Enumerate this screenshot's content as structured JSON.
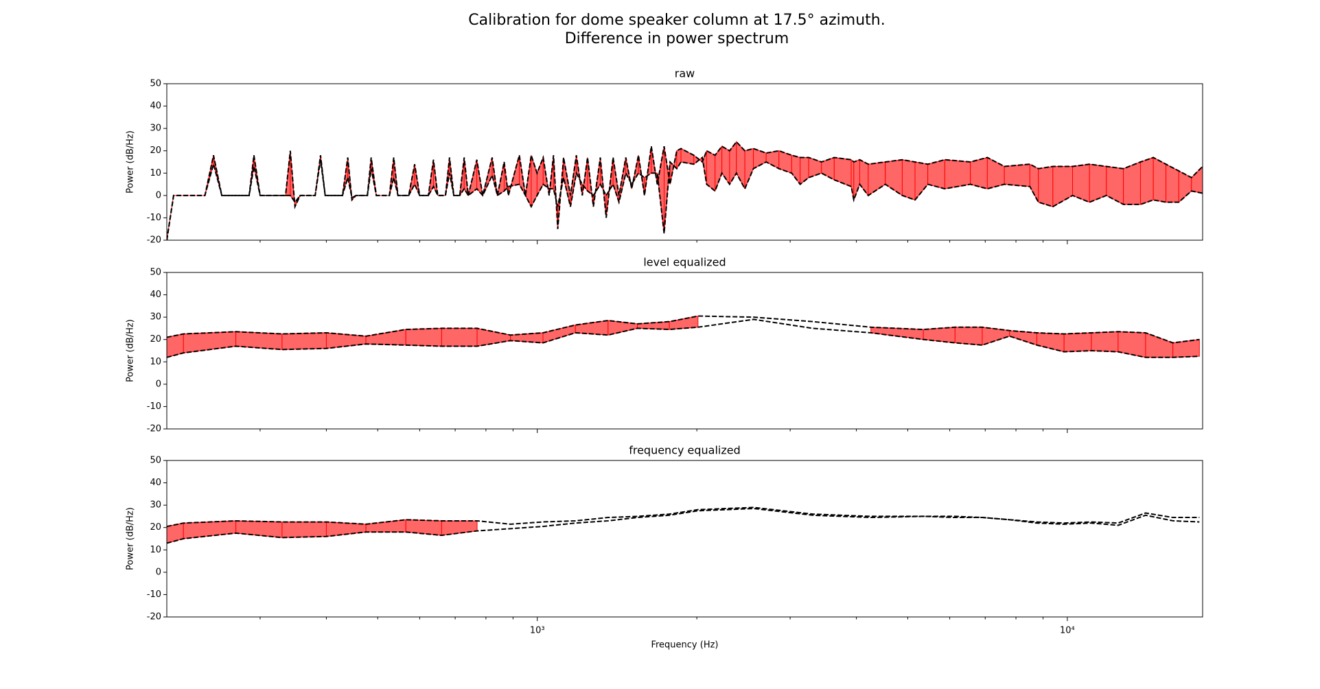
{
  "title": "Calibration for dome speaker column at 17.5° azimuth.",
  "subtitle": "Difference in power spectrum",
  "chart_data": [
    {
      "type": "line",
      "title": "raw",
      "ylabel": "Power (dB/Hz)",
      "xscale": "log",
      "xlim": [
        200,
        18000
      ],
      "ylim": [
        -20,
        50
      ],
      "yticks": [
        -20,
        -10,
        0,
        10,
        20,
        30,
        40,
        50
      ],
      "x": [
        200,
        206,
        236,
        245,
        254,
        286,
        292,
        300,
        335,
        342,
        349,
        357,
        381,
        390,
        398,
        429,
        439,
        447,
        455,
        478,
        486,
        497,
        526,
        536,
        546,
        572,
        587,
        600,
        623,
        637,
        649,
        671,
        683,
        696,
        714,
        728,
        741,
        769,
        789,
        822,
        841,
        866,
        882,
        925,
        950,
        974,
        999,
        1026,
        1053,
        1073,
        1093,
        1121,
        1155,
        1185,
        1216,
        1244,
        1276,
        1315,
        1349,
        1390,
        1426,
        1469,
        1507,
        1552,
        1593,
        1641,
        1684,
        1735,
        1780,
        1833,
        1867,
        1974,
        2048,
        2087,
        2165,
        2230,
        2306,
        2375,
        2464,
        2557,
        2703,
        2857,
        3020,
        3133,
        3251,
        3437,
        3633,
        3911,
        3955,
        4058,
        4211,
        4535,
        4882,
        5160,
        5455,
        5873,
        6562,
        7065,
        7607,
        8499,
        8820,
        9392,
        10230,
        11010,
        11850,
        12760,
        13740,
        14530,
        15350,
        16230,
        17150,
        18000
      ],
      "series": [
        {
          "color": "#000000",
          "linestyle": "dashed",
          "values": [
            -20,
            0,
            0,
            18,
            0,
            0,
            18,
            0,
            0,
            20,
            -5,
            0,
            0,
            18,
            0,
            0,
            17,
            -2,
            0,
            0,
            17,
            0,
            0,
            17,
            0,
            0,
            14,
            0,
            0,
            16,
            0,
            0,
            17,
            0,
            0,
            17,
            0,
            16,
            0,
            17,
            0,
            15,
            0,
            18,
            0,
            18,
            10,
            17,
            0,
            18,
            -15,
            17,
            0,
            18,
            0,
            17,
            -5,
            17,
            -10,
            17,
            0,
            17,
            3,
            18,
            0,
            22,
            5,
            22,
            5,
            20,
            21,
            18,
            15,
            20,
            18,
            22,
            20,
            24,
            20,
            21,
            19,
            20,
            18,
            17,
            17,
            15,
            17,
            16,
            15,
            16,
            14,
            15,
            16,
            15,
            14,
            16,
            15,
            17,
            13,
            14,
            12,
            13,
            13,
            14,
            13,
            12,
            15,
            17,
            14,
            11,
            8,
            13
          ]
        },
        {
          "color": "#000000",
          "linestyle": "dashed",
          "values": [
            -20,
            0,
            0,
            14,
            0,
            0,
            13,
            0,
            0,
            0,
            -3,
            0,
            0,
            16,
            0,
            0,
            8,
            -1,
            0,
            0,
            12,
            0,
            0,
            8,
            0,
            0,
            5,
            0,
            0,
            4,
            0,
            0,
            10,
            0,
            0,
            3,
            0,
            3,
            0,
            9,
            0,
            2,
            4,
            5,
            0,
            -5,
            0,
            5,
            3,
            3,
            -5,
            8,
            -5,
            10,
            5,
            2,
            0,
            5,
            0,
            5,
            -3,
            10,
            5,
            10,
            8,
            10,
            10,
            -17,
            15,
            12,
            15,
            14,
            17,
            5,
            2,
            10,
            5,
            10,
            3,
            12,
            15,
            12,
            10,
            5,
            8,
            10,
            7,
            4,
            -2,
            5,
            0,
            5,
            0,
            -2,
            5,
            3,
            5,
            3,
            5,
            4,
            -3,
            -5,
            0,
            -3,
            0,
            -4,
            -4,
            -2,
            -3,
            -3,
            2,
            1
          ]
        }
      ],
      "fill_between": {
        "color": "#ff6666",
        "edgecolor": "#ff0000",
        "ranges": [
          [
            200,
            18000
          ]
        ]
      }
    },
    {
      "type": "line",
      "title": "level equalized",
      "ylabel": "Power (dB/Hz)",
      "xscale": "log",
      "xlim": [
        200,
        18000
      ],
      "ylim": [
        -20,
        50
      ],
      "yticks": [
        -20,
        -10,
        0,
        10,
        20,
        30,
        40,
        50
      ],
      "x": [
        200,
        215,
        270,
        330,
        400,
        475,
        565,
        660,
        770,
        890,
        1025,
        1180,
        1360,
        1545,
        1775,
        2010,
        2560,
        3310,
        4260,
        5350,
        6140,
        6910,
        7780,
        8760,
        9860,
        11100,
        12470,
        14050,
        15820,
        17750
      ],
      "series": [
        {
          "color": "#000000",
          "linestyle": "dashed",
          "values": [
            21,
            22.5,
            23.5,
            22.5,
            23,
            21.5,
            24.5,
            25,
            25,
            22,
            23,
            26.5,
            28.5,
            27,
            28,
            30.5,
            30,
            28,
            25.5,
            24.5,
            25.5,
            25.5,
            24,
            23,
            22.5,
            23,
            23.5,
            23,
            18.5,
            20
          ]
        },
        {
          "color": "#000000",
          "linestyle": "dashed",
          "values": [
            12,
            14,
            17,
            15.5,
            16,
            18,
            17.5,
            17,
            17,
            19.5,
            18.5,
            23,
            22,
            25,
            24.5,
            25.5,
            29,
            25,
            23,
            20,
            18.5,
            17.5,
            21.5,
            17.5,
            14.5,
            15,
            14.5,
            12,
            12,
            12.5
          ]
        }
      ],
      "fill_between": {
        "color": "#ff6666",
        "edgecolor": "#ff0000",
        "ranges": [
          [
            200,
            770
          ],
          [
            890,
            1360
          ],
          [
            1545,
            2010
          ],
          [
            4260,
            6910
          ],
          [
            7780,
            17750
          ]
        ]
      }
    },
    {
      "type": "line",
      "title": "frequency equalized",
      "ylabel": "Power (dB/Hz)",
      "xlabel": "Frequency (Hz)",
      "xscale": "log",
      "xlim": [
        200,
        18000
      ],
      "ylim": [
        -20,
        50
      ],
      "yticks": [
        -20,
        -10,
        0,
        10,
        20,
        30,
        40,
        50
      ],
      "xticks": [
        {
          "value": 1000,
          "label": "10³"
        },
        {
          "value": 10000,
          "label": "10⁴"
        }
      ],
      "xminorticks": [
        300,
        400,
        500,
        600,
        700,
        800,
        900,
        2000,
        3000,
        4000,
        5000,
        6000,
        7000,
        8000,
        9000
      ],
      "x": [
        200,
        215,
        270,
        330,
        400,
        475,
        565,
        660,
        770,
        890,
        1025,
        1180,
        1360,
        1545,
        1775,
        2010,
        2560,
        3310,
        4260,
        5350,
        6140,
        6910,
        7780,
        8760,
        9860,
        11100,
        12470,
        14050,
        15820,
        17750
      ],
      "series": [
        {
          "color": "#000000",
          "linestyle": "dashed",
          "values": [
            20.5,
            22,
            23,
            22.5,
            22.5,
            21.5,
            23.5,
            23,
            23,
            21.5,
            22.5,
            23,
            24.5,
            25,
            26,
            28,
            29,
            26,
            25,
            25,
            25,
            24.5,
            23.5,
            22.5,
            22,
            22.5,
            22,
            26.5,
            24.5,
            24.5
          ]
        },
        {
          "color": "#000000",
          "linestyle": "dashed",
          "values": [
            13,
            15,
            17.5,
            15.5,
            16,
            18,
            18,
            16.5,
            18.5,
            19.5,
            20.5,
            22,
            23,
            24.5,
            25.5,
            27.5,
            28.5,
            25.5,
            24.5,
            25,
            24.5,
            24.5,
            23.5,
            22,
            21.5,
            22,
            21,
            25.5,
            23,
            22.5
          ]
        }
      ],
      "fill_between": {
        "color": "#ff6666",
        "edgecolor": "#ff0000",
        "ranges": [
          [
            200,
            770
          ]
        ]
      }
    }
  ]
}
